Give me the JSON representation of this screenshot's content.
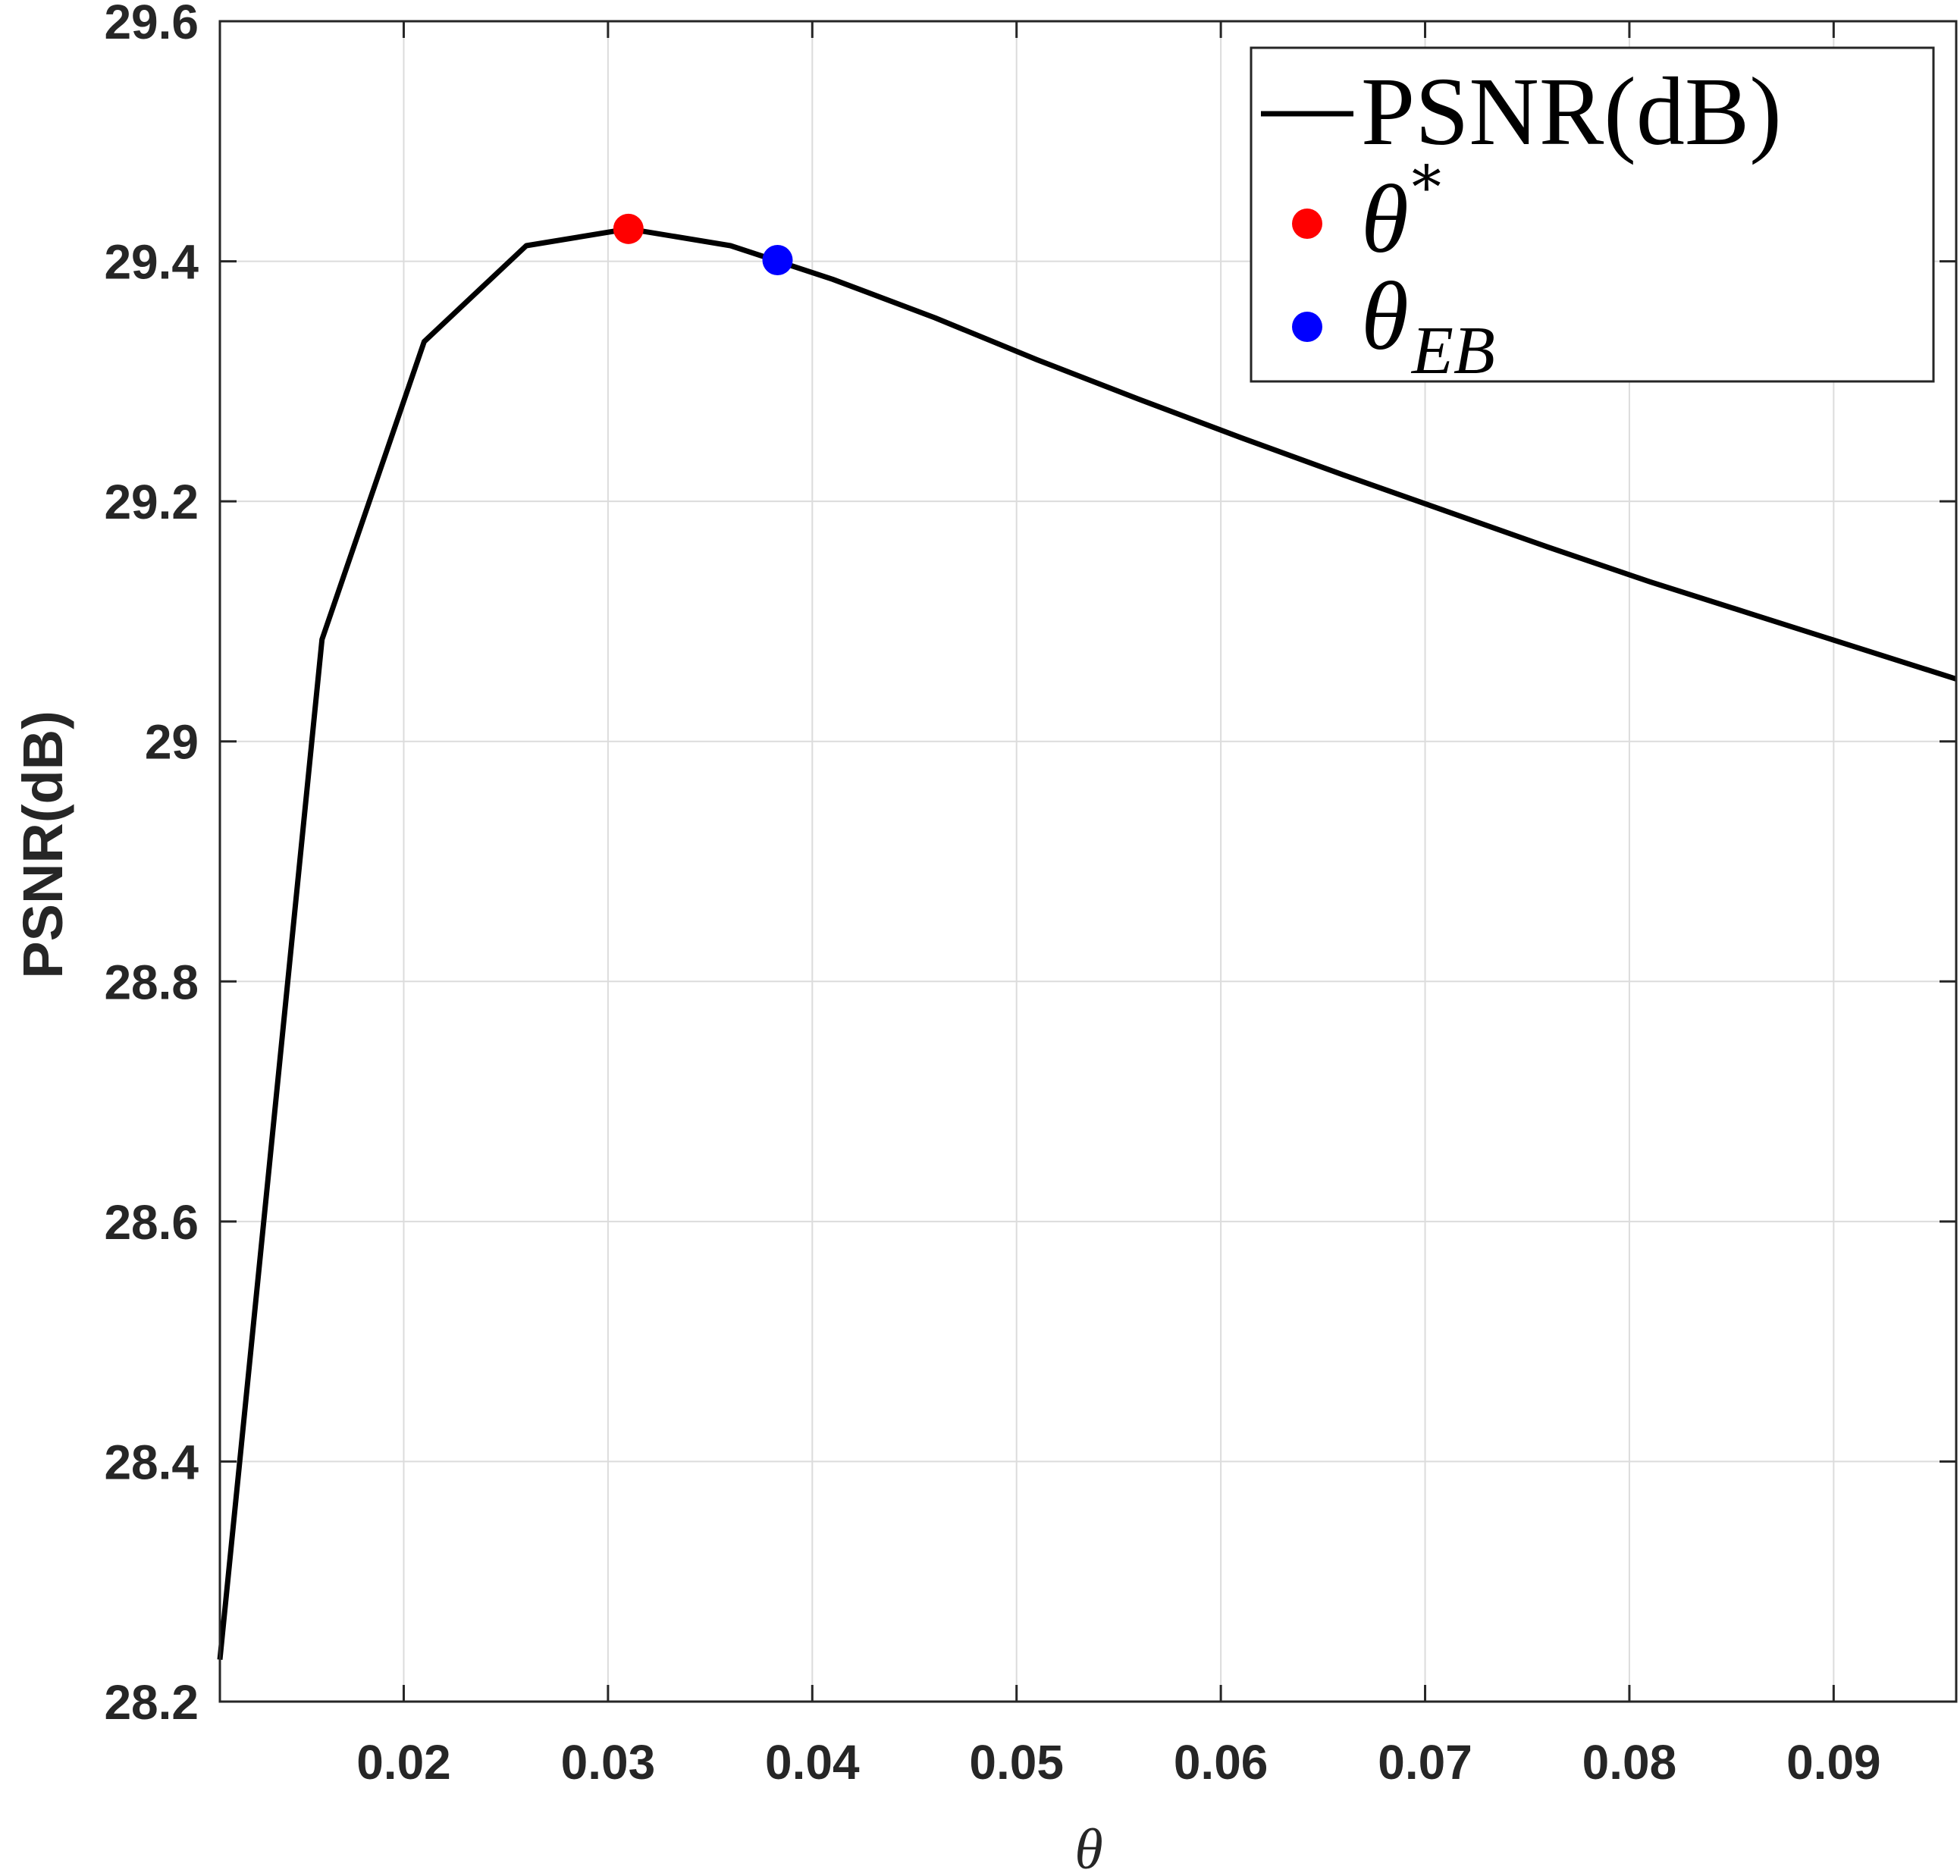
{
  "chart_data": {
    "type": "line",
    "title": "",
    "xlabel": "θ",
    "ylabel": "PSNR(dB)",
    "xlim": [
      0.011,
      0.096
    ],
    "ylim": [
      28.2,
      29.6
    ],
    "xticks": [
      0.02,
      0.03,
      0.04,
      0.05,
      0.06,
      0.07,
      0.08,
      0.09
    ],
    "xtick_labels": [
      "0.02",
      "0.03",
      "0.04",
      "0.05",
      "0.06",
      "0.07",
      "0.08",
      "0.09"
    ],
    "yticks": [
      28.2,
      28.4,
      28.6,
      28.8,
      29.0,
      29.2,
      29.4,
      29.6
    ],
    "ytick_labels": [
      "28.2",
      "28.4",
      "28.6",
      "28.8",
      "29",
      "29.2",
      "29.4",
      "29.6"
    ],
    "grid": true,
    "legend_position": "top-right",
    "series": [
      {
        "name": "PSNR(dB)",
        "type": "line",
        "color": "#000000",
        "x": [
          0.011,
          0.016,
          0.021,
          0.026,
          0.031,
          0.036,
          0.041,
          0.046,
          0.051,
          0.056,
          0.061,
          0.066,
          0.071,
          0.076,
          0.081,
          0.086,
          0.091,
          0.096
        ],
        "y": [
          28.235,
          29.085,
          29.333,
          29.413,
          29.427,
          29.413,
          29.385,
          29.353,
          29.318,
          29.285,
          29.253,
          29.222,
          29.192,
          29.162,
          29.133,
          29.106,
          29.079,
          29.052
        ]
      },
      {
        "name": "θ*",
        "type": "scatter",
        "color": "#ff0000",
        "x": [
          0.031
        ],
        "y": [
          29.427
        ]
      },
      {
        "name": "θEB",
        "type": "scatter",
        "color": "#0000ff",
        "x": [
          0.0383
        ],
        "y": [
          29.401
        ]
      }
    ],
    "legend": {
      "line_label": "PSNR(dB)",
      "theta_star_base": "θ",
      "theta_star_sup": "*",
      "theta_eb_base": "θ",
      "theta_eb_sub": "EB"
    }
  }
}
